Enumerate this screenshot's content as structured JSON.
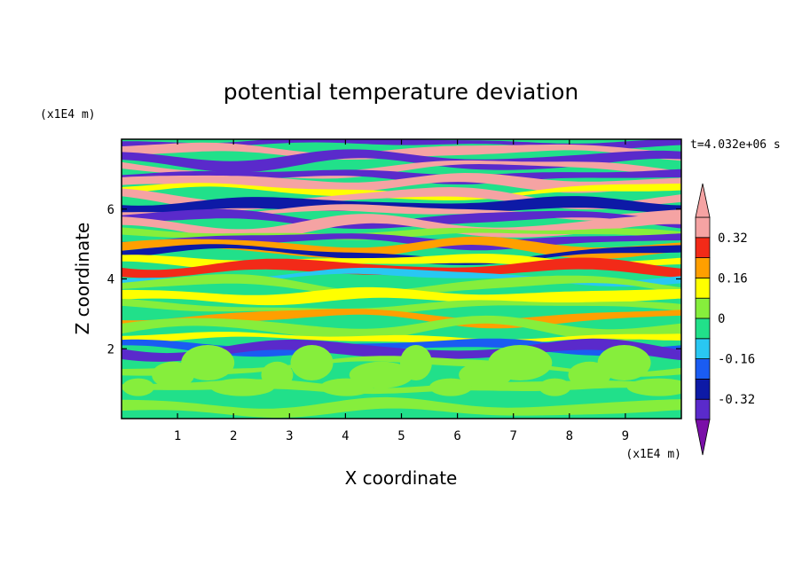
{
  "chart_data": {
    "type": "heatmap",
    "title": "potential temperature deviation",
    "xlabel": "X coordinate",
    "ylabel": "Z coordinate",
    "x_unit": "(x1E4 m)",
    "y_unit": "(x1E4 m)",
    "time_label": "t=4.032e+06 s",
    "xlim": [
      0,
      10
    ],
    "ylim": [
      0,
      8
    ],
    "x_ticks": [
      1,
      2,
      3,
      4,
      5,
      6,
      7,
      8,
      9
    ],
    "y_ticks": [
      2,
      4,
      6
    ],
    "grid": false,
    "colorbar": {
      "position": "right",
      "tick_labels": [
        "0.32",
        "0.16",
        "0",
        "-0.16",
        "-0.32"
      ],
      "tick_values": [
        0.32,
        0.16,
        0,
        -0.16,
        -0.32
      ],
      "levels": [
        -0.4,
        -0.32,
        -0.24,
        -0.16,
        -0.08,
        0,
        0.08,
        0.16,
        0.24,
        0.32,
        0.4
      ],
      "colors": [
        "#7a0fa8",
        "#5a2acb",
        "#0d1aa6",
        "#1a5cf2",
        "#29c7f2",
        "#21e08a",
        "#86ee3c",
        "#ffff00",
        "#ff9f00",
        "#f22a18",
        "#f5a3a3"
      ],
      "extend": "both"
    },
    "bands": [
      {
        "z": 7.9,
        "v": -0.38
      },
      {
        "z": 7.65,
        "v": 0.4
      },
      {
        "z": 7.4,
        "v": -0.38
      },
      {
        "z": 7.15,
        "v": 0.4
      },
      {
        "z": 6.95,
        "v": -0.36
      },
      {
        "z": 6.75,
        "v": 0.38
      },
      {
        "z": 6.5,
        "v": 0.1
      },
      {
        "z": 6.3,
        "v": 0.4
      },
      {
        "z": 6.1,
        "v": -0.3
      },
      {
        "z": 5.9,
        "v": 0.4
      },
      {
        "z": 5.7,
        "v": -0.38
      },
      {
        "z": 5.5,
        "v": 0.35
      },
      {
        "z": 5.3,
        "v": 0.0
      },
      {
        "z": 5.1,
        "v": -0.38
      },
      {
        "z": 4.9,
        "v": 0.2
      },
      {
        "z": 4.7,
        "v": -0.32
      },
      {
        "z": 4.5,
        "v": 0.1
      },
      {
        "z": 4.3,
        "v": 0.3
      },
      {
        "z": 4.05,
        "v": -0.1
      },
      {
        "z": 3.8,
        "v": 0.0
      },
      {
        "z": 3.5,
        "v": 0.1
      },
      {
        "z": 3.2,
        "v": 0.02
      },
      {
        "z": 2.9,
        "v": 0.18
      },
      {
        "z": 2.6,
        "v": 0.0
      },
      {
        "z": 2.3,
        "v": 0.12
      },
      {
        "z": 2.05,
        "v": -0.18
      },
      {
        "z": 1.95,
        "v": -0.33
      },
      {
        "z": 1.5,
        "v": 0.06
      },
      {
        "z": 0.9,
        "v": 0.0
      },
      {
        "z": 0.3,
        "v": 0.07
      }
    ]
  }
}
